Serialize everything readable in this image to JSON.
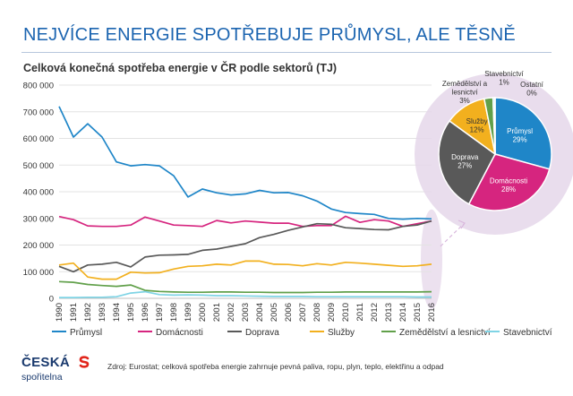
{
  "page": {
    "title": "NEJVÍCE ENERGIE SPOTŘEBUJE PRŮMYSL, ALE TĚSNĚ"
  },
  "footer": {
    "logo_top": "ČESKÁ",
    "logo_bottom": "spořitelna",
    "source": "Zdroj: Eurostat; celková spotřeba energie zahrnuje pevná paliva, ropu, plyn, teplo, elektřinu a odpad"
  },
  "colors": {
    "highlight": "#e5d7ea",
    "connector": "#d9b8dd",
    "title": "#1b64b0"
  },
  "chart_data": [
    {
      "type": "line",
      "title": "Celková konečná spotřeba energie v ČR podle sektorů (TJ)",
      "x": [
        "1990",
        "1991",
        "1992",
        "1993",
        "1994",
        "1995",
        "1996",
        "1997",
        "1998",
        "1999",
        "2000",
        "2001",
        "2002",
        "2003",
        "2004",
        "2005",
        "2006",
        "2007",
        "2008",
        "2009",
        "2010",
        "2011",
        "2012",
        "2013",
        "2014",
        "2015",
        "2016"
      ],
      "ylim": [
        0,
        800000
      ],
      "yticks": [
        "0",
        "100 000",
        "200 000",
        "300 000",
        "400 000",
        "500 000",
        "600 000",
        "700 000",
        "800 000"
      ],
      "grid": "horizontal",
      "legend": "bottom",
      "series": [
        {
          "name": "Průmysl",
          "color": "#1f86c8",
          "values": [
            720000,
            605000,
            655000,
            605000,
            512000,
            497000,
            502000,
            497000,
            460000,
            380000,
            410000,
            396000,
            388000,
            392000,
            405000,
            396000,
            397000,
            385000,
            365000,
            335000,
            322000,
            318000,
            315000,
            300000,
            297000,
            300000,
            298000
          ]
        },
        {
          "name": "Domácnosti",
          "color": "#d6257f",
          "values": [
            307000,
            295000,
            272000,
            270000,
            270000,
            275000,
            305000,
            290000,
            275000,
            273000,
            270000,
            292000,
            283000,
            290000,
            286000,
            282000,
            282000,
            270000,
            273000,
            273000,
            308000,
            285000,
            295000,
            290000,
            270000,
            280000,
            290000
          ]
        },
        {
          "name": "Doprava",
          "color": "#595959",
          "values": [
            120000,
            100000,
            125000,
            128000,
            135000,
            118000,
            155000,
            162000,
            163000,
            165000,
            180000,
            185000,
            195000,
            205000,
            228000,
            240000,
            255000,
            268000,
            280000,
            278000,
            265000,
            262000,
            258000,
            257000,
            270000,
            275000,
            290000
          ]
        },
        {
          "name": "Služby",
          "color": "#f2b01e",
          "values": [
            125000,
            132000,
            80000,
            72000,
            72000,
            98000,
            95000,
            96000,
            110000,
            120000,
            122000,
            128000,
            125000,
            140000,
            140000,
            128000,
            127000,
            122000,
            130000,
            125000,
            135000,
            132000,
            128000,
            124000,
            120000,
            122000,
            128000
          ]
        },
        {
          "name": "Zemědělství a lesnictví",
          "color": "#61a04a",
          "values": [
            63000,
            60000,
            52000,
            48000,
            45000,
            50000,
            30000,
            26000,
            24000,
            23000,
            23000,
            24000,
            24000,
            23000,
            23000,
            22000,
            22000,
            22000,
            23000,
            23000,
            24000,
            24000,
            24000,
            24000,
            24000,
            24000,
            25000
          ]
        },
        {
          "name": "Stavebnictví",
          "color": "#7fd4e5",
          "values": [
            3000,
            3000,
            4000,
            4000,
            6000,
            20000,
            25000,
            14000,
            12000,
            13000,
            12000,
            10000,
            10000,
            9000,
            8000,
            7000,
            7000,
            7000,
            6000,
            6000,
            6000,
            6000,
            6000,
            6000,
            6000,
            5000,
            5000
          ]
        }
      ]
    },
    {
      "type": "pie",
      "slices": [
        {
          "name": "Průmysl",
          "label": "Průmysl",
          "percent_label": "29%",
          "value": 29.3,
          "color": "#1f86c8"
        },
        {
          "name": "Domácnosti",
          "label": "Domácnosti",
          "percent_label": "28%",
          "value": 28.4,
          "color": "#d6257f"
        },
        {
          "name": "Doprava",
          "label": "Doprava",
          "percent_label": "27%",
          "value": 27.3,
          "color": "#595959"
        },
        {
          "name": "Služby",
          "label": "Služby",
          "percent_label": "12%",
          "value": 11.9,
          "color": "#f2b01e"
        },
        {
          "name": "Zemědělství a lesnictví",
          "label": "Zemědělství a lesnictví",
          "percent_label": "3%",
          "value": 2.5,
          "color": "#61a04a"
        },
        {
          "name": "Stavebnictví",
          "label": "Stavebnictví",
          "percent_label": "1%",
          "value": 0.5,
          "color": "#7fd4e5"
        },
        {
          "name": "Ostatní",
          "label": "Ostatní",
          "percent_label": "0%",
          "value": 0.1,
          "color": "#2f5597"
        }
      ]
    }
  ]
}
